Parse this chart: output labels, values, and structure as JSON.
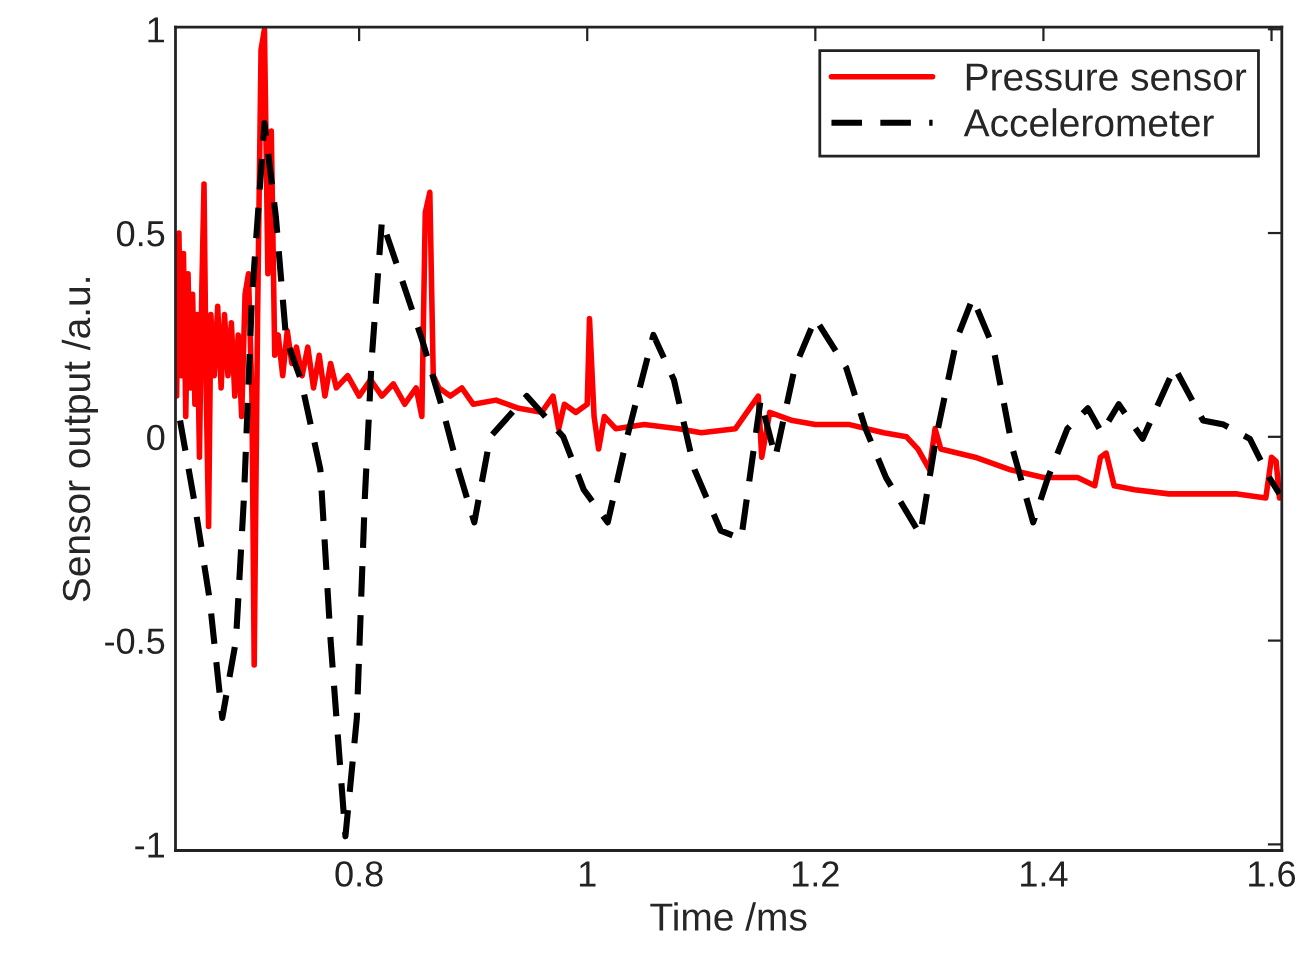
{
  "chart_data": {
    "type": "line",
    "xlabel": "Time /ms",
    "ylabel": "Sensor output /a.u.",
    "xlim": [
      0.639,
      1.609
    ],
    "ylim": [
      -1.015,
      1.005
    ],
    "xticks": [
      0.8,
      1,
      1.2,
      1.4,
      1.6
    ],
    "yticks": [
      -1,
      -0.5,
      0,
      0.5,
      1
    ],
    "grid": false,
    "legend": "top right",
    "series": [
      {
        "name": "Pressure sensor",
        "color": "#ff0000",
        "line_style": "solid",
        "x": [
          0.64,
          0.642,
          0.644,
          0.646,
          0.648,
          0.65,
          0.652,
          0.654,
          0.656,
          0.658,
          0.66,
          0.662,
          0.664,
          0.666,
          0.668,
          0.67,
          0.673,
          0.676,
          0.679,
          0.682,
          0.685,
          0.688,
          0.691,
          0.694,
          0.697,
          0.7,
          0.703,
          0.706,
          0.708,
          0.711,
          0.714,
          0.717,
          0.72,
          0.723,
          0.726,
          0.729,
          0.733,
          0.737,
          0.741,
          0.745,
          0.75,
          0.755,
          0.76,
          0.765,
          0.77,
          0.775,
          0.78,
          0.79,
          0.8,
          0.81,
          0.82,
          0.83,
          0.84,
          0.85,
          0.855,
          0.858,
          0.862,
          0.865,
          0.87,
          0.88,
          0.89,
          0.9,
          0.92,
          0.94,
          0.96,
          0.97,
          0.975,
          0.98,
          0.99,
          1.0,
          1.002,
          1.006,
          1.01,
          1.015,
          1.025,
          1.05,
          1.08,
          1.1,
          1.13,
          1.145,
          1.15,
          1.153,
          1.16,
          1.18,
          1.2,
          1.23,
          1.26,
          1.28,
          1.29,
          1.3,
          1.305,
          1.31,
          1.34,
          1.37,
          1.4,
          1.43,
          1.445,
          1.45,
          1.455,
          1.462,
          1.48,
          1.51,
          1.54,
          1.57,
          1.595,
          1.6,
          1.604,
          1.607
        ],
        "values": [
          0.1,
          0.5,
          0.15,
          0.45,
          0.05,
          0.4,
          0.12,
          0.35,
          0.08,
          0.3,
          -0.05,
          0.35,
          0.62,
          0.1,
          -0.22,
          0.3,
          0.15,
          0.32,
          0.12,
          0.3,
          0.15,
          0.28,
          0.1,
          0.25,
          0.05,
          0.35,
          0.4,
          0.1,
          -0.56,
          0.3,
          0.95,
          1.0,
          0.4,
          0.75,
          0.2,
          0.25,
          0.15,
          0.26,
          0.18,
          0.22,
          0.15,
          0.22,
          0.12,
          0.2,
          0.1,
          0.18,
          0.12,
          0.15,
          0.1,
          0.14,
          0.1,
          0.13,
          0.08,
          0.12,
          0.05,
          0.55,
          0.6,
          0.15,
          0.12,
          0.1,
          0.12,
          0.08,
          0.09,
          0.07,
          0.06,
          0.1,
          0.02,
          0.08,
          0.06,
          0.08,
          0.29,
          0.05,
          -0.03,
          0.05,
          0.02,
          0.03,
          0.02,
          0.01,
          0.02,
          0.08,
          0.1,
          -0.05,
          0.06,
          0.04,
          0.03,
          0.03,
          0.01,
          0.0,
          -0.03,
          -0.08,
          0.02,
          -0.03,
          -0.05,
          -0.08,
          -0.1,
          -0.1,
          -0.12,
          -0.05,
          -0.04,
          -0.12,
          -0.13,
          -0.14,
          -0.14,
          -0.14,
          -0.15,
          -0.05,
          -0.06,
          -0.15
        ]
      },
      {
        "name": "Accelerometer",
        "color": "#000000",
        "line_style": "dashed",
        "x": [
          0.643,
          0.655,
          0.669,
          0.68,
          0.692,
          0.699,
          0.706,
          0.717,
          0.727,
          0.736,
          0.749,
          0.766,
          0.775,
          0.788,
          0.798,
          0.805,
          0.811,
          0.82,
          0.837,
          0.855,
          0.873,
          0.887,
          0.901,
          0.915,
          0.947,
          0.979,
          0.997,
          1.018,
          1.035,
          1.058,
          1.076,
          1.094,
          1.117,
          1.135,
          1.152,
          1.165,
          1.182,
          1.2,
          1.227,
          1.244,
          1.262,
          1.292,
          1.306,
          1.324,
          1.338,
          1.356,
          1.373,
          1.391,
          1.404,
          1.421,
          1.439,
          1.451,
          1.466,
          1.487,
          1.515,
          1.54,
          1.558,
          1.581,
          1.598,
          1.607
        ],
        "values": [
          0.04,
          -0.15,
          -0.4,
          -0.69,
          -0.5,
          -0.15,
          0.34,
          0.77,
          0.54,
          0.24,
          0.14,
          -0.08,
          -0.5,
          -0.98,
          -0.69,
          -0.15,
          0.19,
          0.53,
          0.39,
          0.24,
          0.07,
          -0.08,
          -0.21,
          0.0,
          0.1,
          0.0,
          -0.13,
          -0.21,
          0.0,
          0.25,
          0.14,
          -0.08,
          -0.23,
          -0.25,
          0.09,
          -0.05,
          0.17,
          0.29,
          0.17,
          0.02,
          -0.1,
          -0.24,
          0.0,
          0.24,
          0.34,
          0.22,
          -0.03,
          -0.21,
          -0.1,
          0.02,
          0.07,
          0.01,
          0.08,
          -0.005,
          0.17,
          0.04,
          0.03,
          -0.005,
          -0.1,
          -0.14
        ]
      }
    ]
  }
}
